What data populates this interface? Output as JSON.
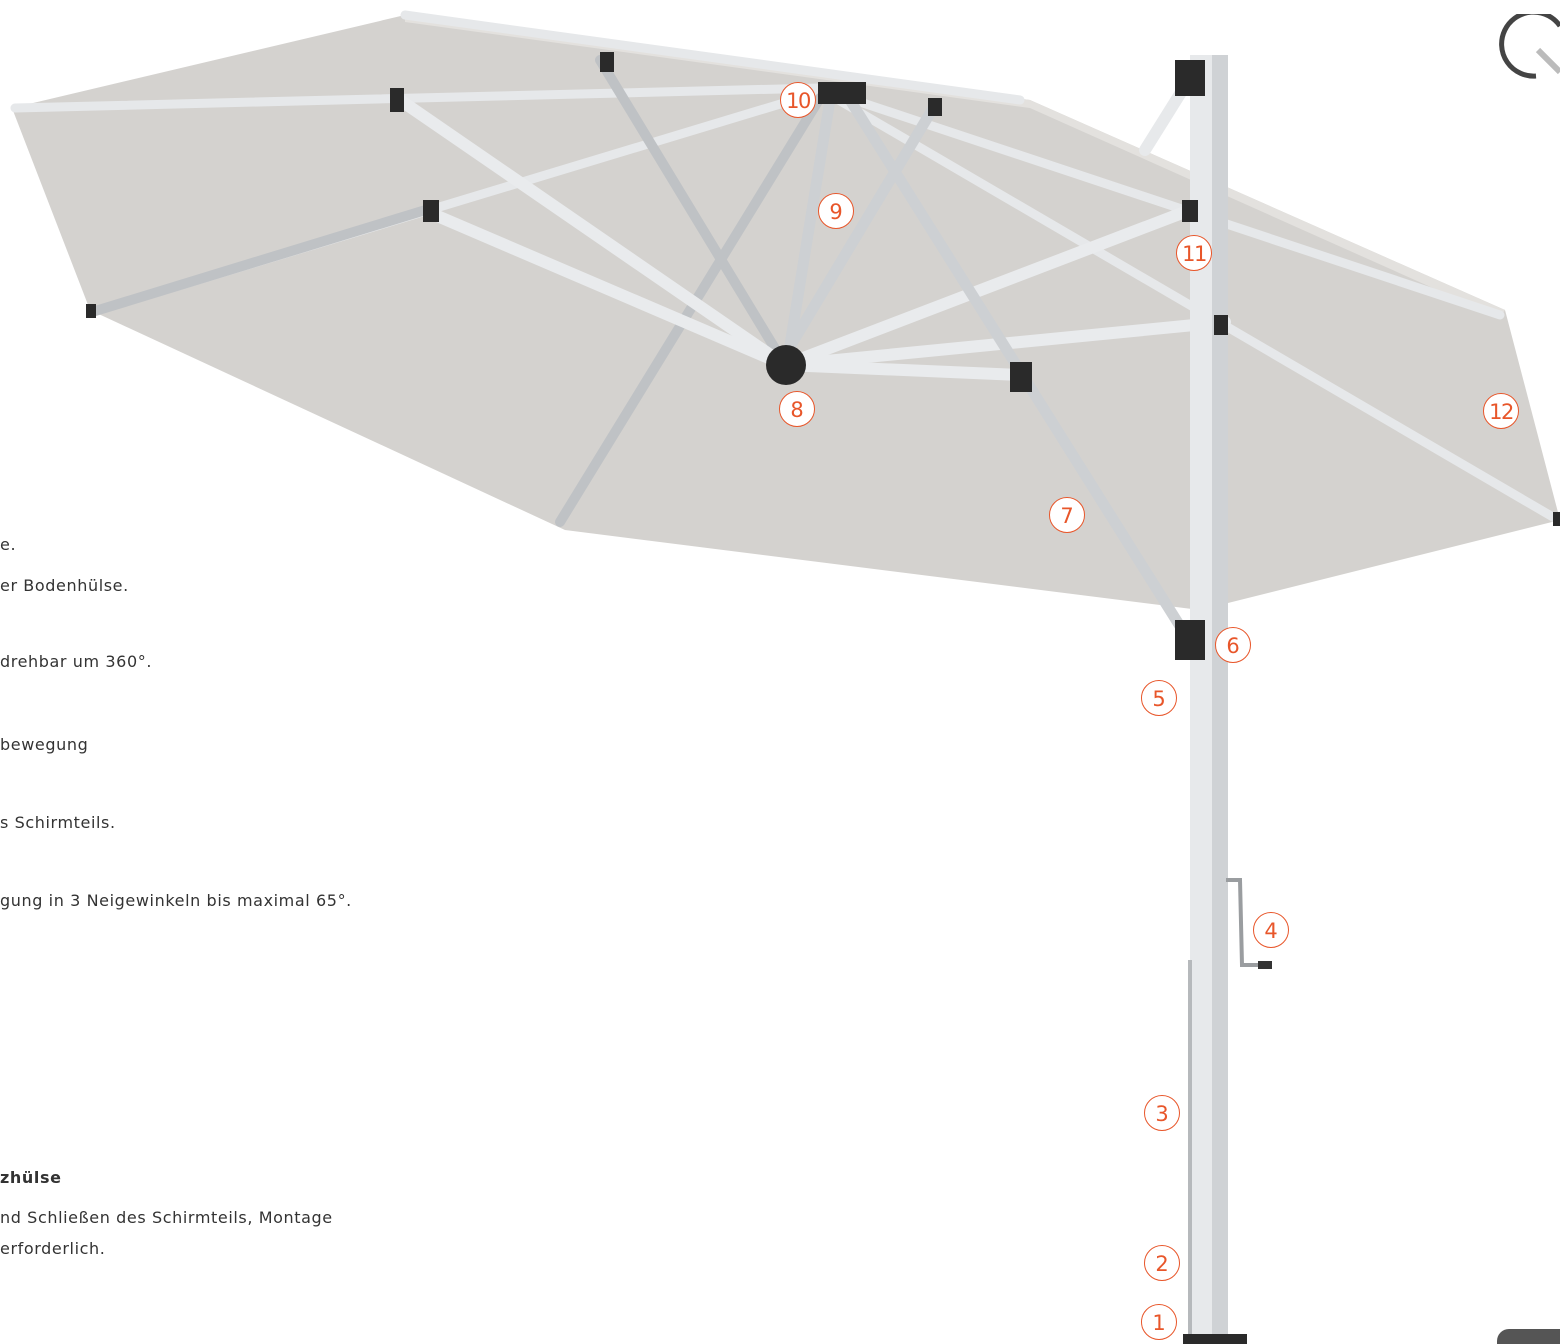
{
  "text_lines": [
    "e.",
    "er Bodenhülse.",
    "drehbar um 360°.",
    "bewegung",
    "s Schirmteils.",
    "gung in 3 Neigewinkeln bis maximal 65°.",
    "zhülse",
    "nd Schließen des Schirmteils, Montage",
    " erforderlich."
  ],
  "callouts": [
    "1",
    "2",
    "3",
    "4",
    "5",
    "6",
    "7",
    "8",
    "9",
    "10",
    "11",
    "12"
  ],
  "icons": {
    "logo": "circle-quadrant-logo-icon",
    "page_tab": "page-tab-icon"
  },
  "colors": {
    "callout": "#e8562a",
    "canopy": "#d4d2cf",
    "frame": "#b9bcbf",
    "joint": "#2a2a2a",
    "text": "#333333"
  }
}
